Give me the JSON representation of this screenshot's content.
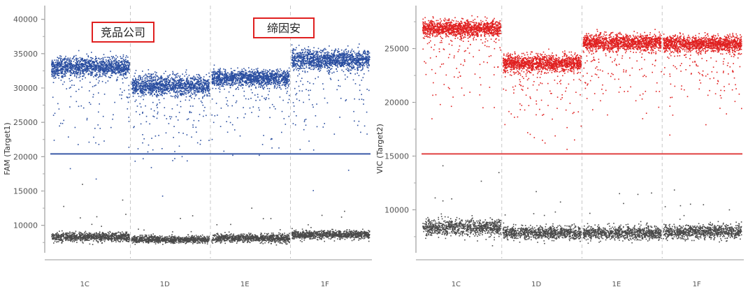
{
  "chart_data": [
    {
      "type": "scatter",
      "id": "fam",
      "ylabel": "FAM (Target1)",
      "ylim": [
        6000,
        42000
      ],
      "yticks": [
        10000,
        15000,
        20000,
        25000,
        30000,
        35000,
        40000
      ],
      "categories": [
        "1C",
        "1D",
        "1E",
        "1F"
      ],
      "threshold": 20400,
      "threshold_color": "#3a5aa8",
      "positive_color": "#2a4ea0",
      "negative_color": "#4a4a4a",
      "annotations": [
        "竞品公司",
        "缔因安"
      ],
      "annotation_border_color": "#e02020",
      "wells": [
        {
          "name": "1C",
          "positive_mean": 33200,
          "positive_spread": 1300,
          "negative_mean": 8400,
          "negative_spread": 600
        },
        {
          "name": "1D",
          "positive_mean": 30400,
          "positive_spread": 1300,
          "negative_mean": 8000,
          "negative_spread": 450
        },
        {
          "name": "1E",
          "positive_mean": 31500,
          "positive_spread": 1100,
          "negative_mean": 8200,
          "negative_spread": 550
        },
        {
          "name": "1F",
          "positive_mean": 34200,
          "positive_spread": 1300,
          "negative_mean": 8700,
          "negative_spread": 550
        }
      ]
    },
    {
      "type": "scatter",
      "id": "vic",
      "ylabel": "VIC (Target2)",
      "ylim": [
        6000,
        29000
      ],
      "yticks": [
        10000,
        15000,
        20000,
        25000
      ],
      "categories": [
        "1C",
        "1D",
        "1E",
        "1F"
      ],
      "threshold": 15200,
      "threshold_color": "#e04040",
      "positive_color": "#e02020",
      "negative_color": "#4a4a4a",
      "annotations": [],
      "wells": [
        {
          "name": "1C",
          "positive_mean": 26900,
          "positive_spread": 700,
          "negative_mean": 8400,
          "negative_spread": 700
        },
        {
          "name": "1D",
          "positive_mean": 23700,
          "positive_spread": 700,
          "negative_mean": 7900,
          "negative_spread": 550
        },
        {
          "name": "1E",
          "positive_mean": 25600,
          "positive_spread": 700,
          "negative_mean": 7900,
          "negative_spread": 550
        },
        {
          "name": "1F",
          "positive_mean": 25500,
          "positive_spread": 700,
          "negative_mean": 8000,
          "negative_spread": 550
        }
      ]
    }
  ]
}
